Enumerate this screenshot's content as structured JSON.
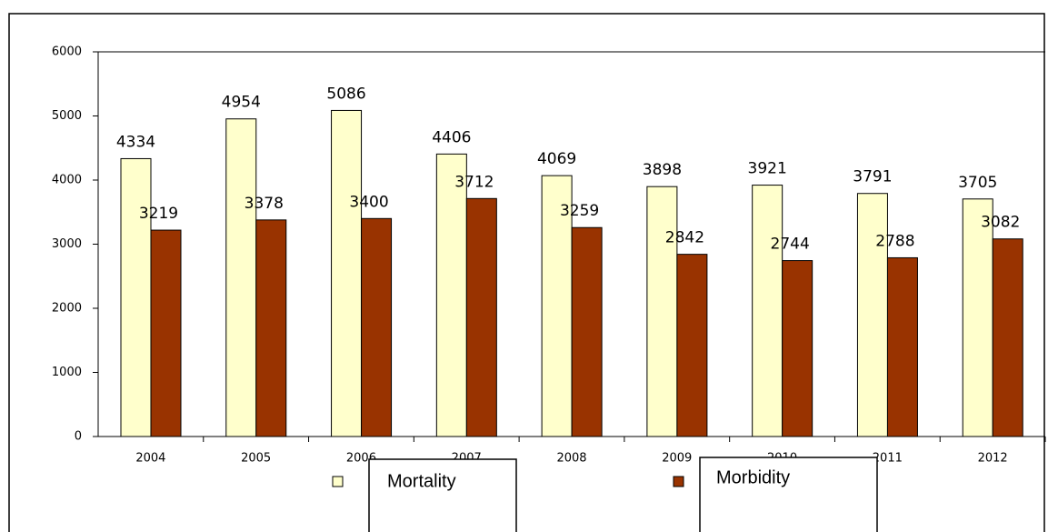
{
  "chart_data": {
    "type": "bar",
    "categories": [
      "2004",
      "2005",
      "2006",
      "2007",
      "2008",
      "2009",
      "2010",
      "2011",
      "2012"
    ],
    "series": [
      {
        "name": "Mortality",
        "color": "#ffffcc",
        "values": [
          4334,
          4954,
          5086,
          4406,
          4069,
          3898,
          3921,
          3791,
          3705
        ]
      },
      {
        "name": "Morbidity",
        "color": "#993300",
        "values": [
          3219,
          3378,
          3400,
          3712,
          3259,
          2842,
          2744,
          2788,
          3082
        ]
      }
    ],
    "ylim": [
      0,
      6000
    ],
    "yticks": [
      0,
      1000,
      2000,
      3000,
      4000,
      5000,
      6000
    ],
    "grid": false
  }
}
